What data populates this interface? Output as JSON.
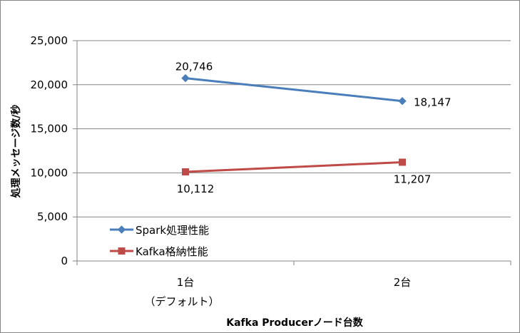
{
  "chart_data": {
    "type": "line",
    "categories": [
      "1台",
      "2台"
    ],
    "category_sublabels": [
      "（デフォルト）",
      ""
    ],
    "series": [
      {
        "name": "Spark処理性能",
        "values": [
          20746,
          18147
        ],
        "labels": [
          "20,746",
          "18,147"
        ],
        "color": "#4A7EBB",
        "marker": "diamond"
      },
      {
        "name": "Kafka格納性能",
        "values": [
          10112,
          11207
        ],
        "labels": [
          "10,112",
          "11,207"
        ],
        "color": "#BE4B48",
        "marker": "square"
      }
    ],
    "xlabel": "Kafka Producerノード台数",
    "ylabel": "処理メッセージ数/秒",
    "ylim": [
      0,
      25000
    ],
    "yticks": [
      "0",
      "5,000",
      "10,000",
      "15,000",
      "20,000",
      "25,000"
    ],
    "grid": "horizontal",
    "legend": "bottom-left inside plot",
    "gridline_color": "#868686"
  }
}
